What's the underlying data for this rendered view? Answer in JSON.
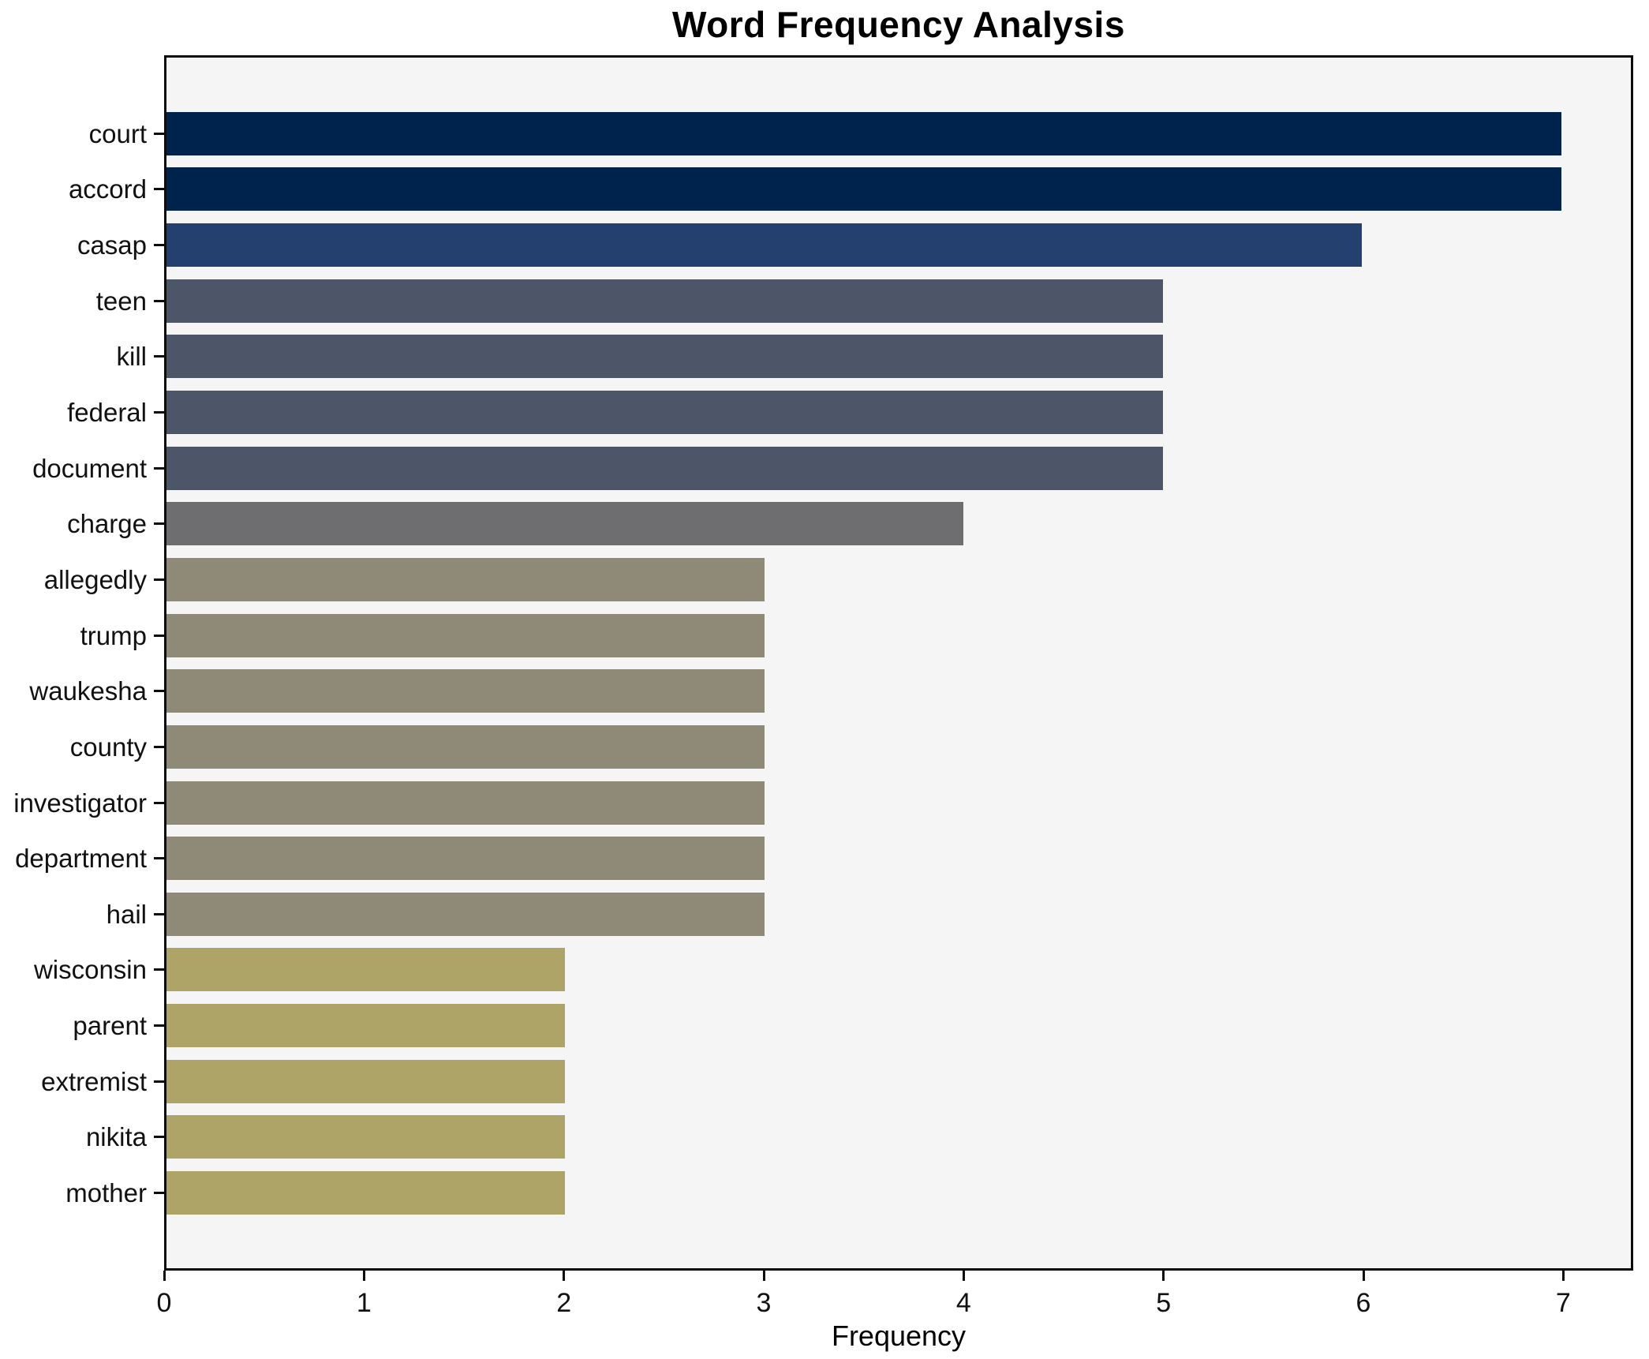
{
  "title": "Word Frequency Analysis",
  "chart_data": {
    "type": "bar",
    "orientation": "horizontal",
    "title": "Word Frequency Analysis",
    "xlabel": "Frequency",
    "ylabel": "",
    "categories": [
      "court",
      "accord",
      "casap",
      "teen",
      "kill",
      "federal",
      "document",
      "charge",
      "allegedly",
      "trump",
      "waukesha",
      "county",
      "investigator",
      "department",
      "hail",
      "wisconsin",
      "parent",
      "extremist",
      "nikita",
      "mother"
    ],
    "values": [
      7,
      7,
      6,
      5,
      5,
      5,
      5,
      4,
      3,
      3,
      3,
      3,
      3,
      3,
      3,
      2,
      2,
      2,
      2,
      2
    ],
    "xticks": [
      0,
      1,
      2,
      3,
      4,
      5,
      6,
      7
    ],
    "xlim": [
      0,
      7.35
    ],
    "grid": false,
    "value_colors": {
      "7": "#00234e",
      "6": "#24406e",
      "5": "#4d5568",
      "4": "#6e6e70",
      "3": "#8f8977",
      "2": "#aea467"
    },
    "plot_background": "#f5f5f6",
    "figure_background": "#ffffff",
    "spine_color": "#0c0c0c",
    "text_color": "#000000"
  }
}
